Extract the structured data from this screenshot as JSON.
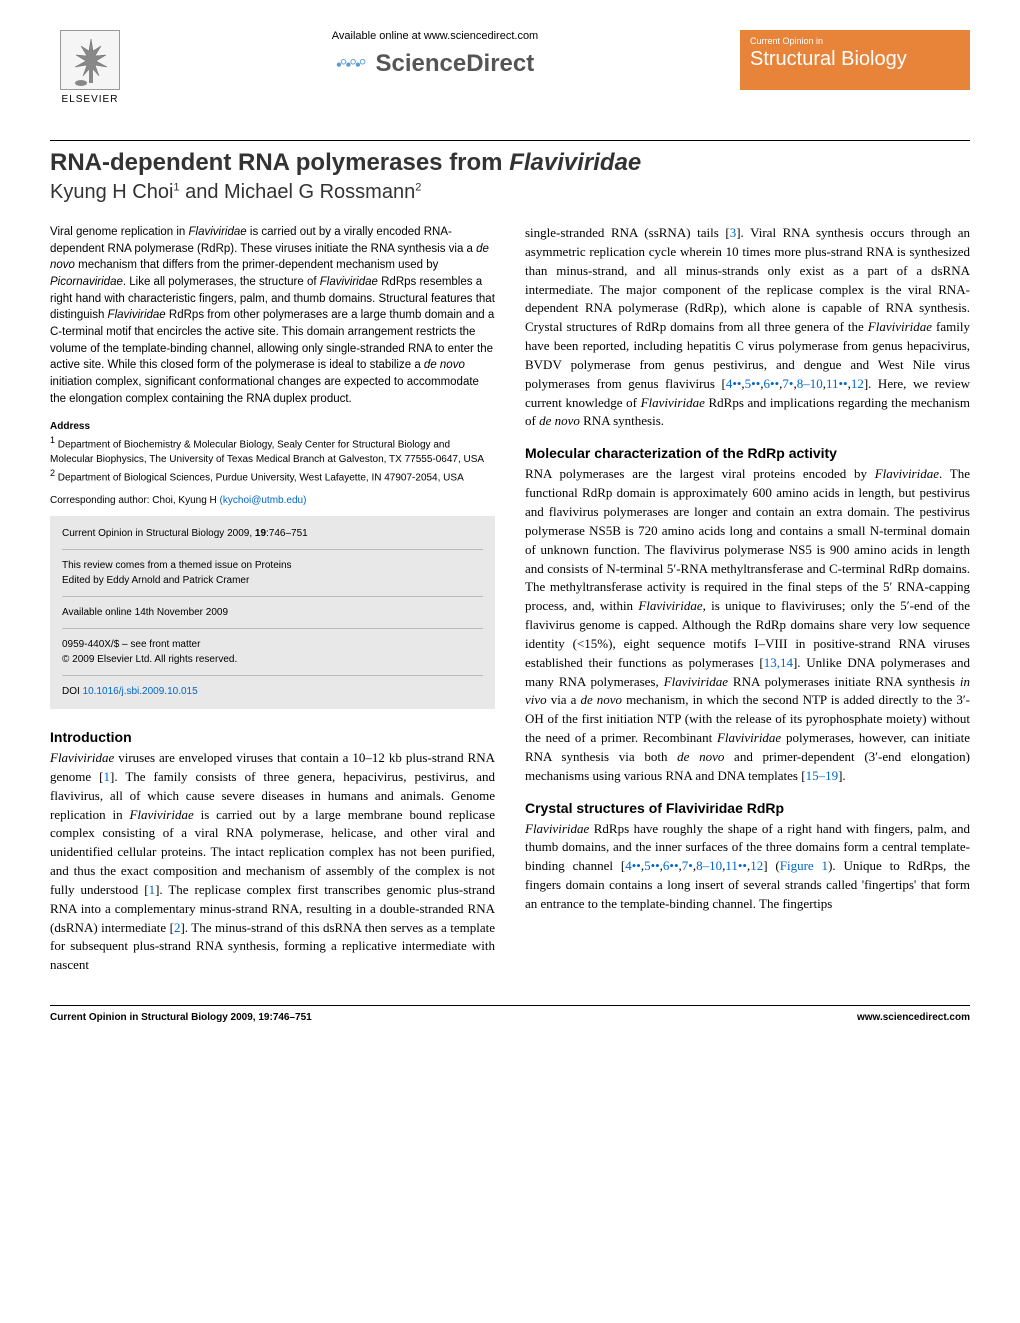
{
  "header": {
    "available_online": "Available online at www.sciencedirect.com",
    "sciencedirect": "ScienceDirect",
    "elsevier_label": "ELSEVIER",
    "badge_small": "Current Opinion in",
    "badge_large": "Structural Biology"
  },
  "article": {
    "title_pre": "RNA-dependent RNA polymerases from ",
    "title_italic": "Flaviviridae",
    "authors_html": "Kyung H Choi<sup>1</sup> and Michael G Rossmann<sup>2</sup>"
  },
  "abstract": {
    "text": "Viral genome replication in <span class=\"italic\">Flaviviridae</span> is carried out by a virally encoded RNA-dependent RNA polymerase (RdRp). These viruses initiate the RNA synthesis via a <span class=\"italic\">de novo</span> mechanism that differs from the primer-dependent mechanism used by <span class=\"italic\">Picornaviridae</span>. Like all polymerases, the structure of <span class=\"italic\">Flaviviridae</span> RdRps resembles a right hand with characteristic fingers, palm, and thumb domains. Structural features that distinguish <span class=\"italic\">Flaviviridae</span> RdRps from other polymerases are a large thumb domain and a C-terminal motif that encircles the active site. This domain arrangement restricts the volume of the template-binding channel, allowing only single-stranded RNA to enter the active site. While this closed form of the polymerase is ideal to stabilize a <span class=\"italic\">de novo</span> initiation complex, significant conformational changes are expected to accommodate the elongation complex containing the RNA duplex product."
  },
  "address": {
    "head": "Address",
    "body": "<sup>1</sup> Department of Biochemistry & Molecular Biology, Sealy Center for Structural Biology and Molecular Biophysics, The University of Texas Medical Branch at Galveston, TX 77555-0647, USA<br><sup>2</sup> Department of Biological Sciences, Purdue University, West Lafayette, IN 47907-2054, USA"
  },
  "corresponding": {
    "label": "Corresponding author: Choi, Kyung H ",
    "email": "(kychoi@utmb.edu)"
  },
  "infobox": {
    "citation": "Current Opinion in Structural Biology 2009, <b>19</b>:746–751",
    "themed": "This review comes from a themed issue on Proteins",
    "edited": "Edited by Eddy Arnold and Patrick Cramer",
    "online": "Available online 14th November 2009",
    "issn": "0959-440X/$ – see front matter",
    "copyright": "© 2009 Elsevier Ltd. All rights reserved.",
    "doi_label": "DOI ",
    "doi_link": "10.1016/j.sbi.2009.10.015"
  },
  "sections": {
    "intro_head": "Introduction",
    "intro_body": "<span class=\"italic\">Flaviviridae</span> viruses are enveloped viruses that contain a 10–12 kb plus-strand RNA genome [<a>1</a>]. The family consists of three genera, hepacivirus, pestivirus, and flavivirus, all of which cause severe diseases in humans and animals. Genome replication in <span class=\"italic\">Flaviviridae</span> is carried out by a large membrane bound replicase complex consisting of a viral RNA polymerase, helicase, and other viral and unidentified cellular proteins. The intact replication complex has not been purified, and thus the exact composition and mechanism of assembly of the complex is not fully understood [<a>1</a>]. The replicase complex first transcribes genomic plus-strand RNA into a complementary minus-strand RNA, resulting in a double-stranded RNA (dsRNA) intermediate [<a>2</a>]. The minus-strand of this dsRNA then serves as a template for subsequent plus-strand RNA synthesis, forming a replicative intermediate with nascent",
    "col2_continue": "single-stranded RNA (ssRNA) tails [<a>3</a>]. Viral RNA synthesis occurs through an asymmetric replication cycle wherein 10 times more plus-strand RNA is synthesized than minus-strand, and all minus-strands only exist as a part of a dsRNA intermediate. The major component of the replicase complex is the viral RNA-dependent RNA polymerase (RdRp), which alone is capable of RNA synthesis. Crystal structures of RdRp domains from all three genera of the <span class=\"italic\">Flaviviridae</span> family have been reported, including hepatitis C virus polymerase from genus hepacivirus, BVDV polymerase from genus pestivirus, and dengue and West Nile virus polymerases from genus flavivirus [<a>4••</a>,<a>5••</a>,<a>6••</a>,<a>7•</a>,<a>8–10</a>,<a>11••</a>,<a>12</a>]. Here, we review current knowledge of <span class=\"italic\">Flaviviridae</span> RdRps and implications regarding the mechanism of <span class=\"italic\">de novo</span> RNA synthesis.",
    "molec_head": "Molecular characterization of the RdRp activity",
    "molec_body": "RNA polymerases are the largest viral proteins encoded by <span class=\"italic\">Flaviviridae</span>. The functional RdRp domain is approximately 600 amino acids in length, but pestivirus and flavivirus polymerases are longer and contain an extra domain. The pestivirus polymerase NS5B is 720 amino acids long and contains a small N-terminal domain of unknown function. The flavivirus polymerase NS5 is 900 amino acids in length and consists of N-terminal 5′-RNA methyltransferase and C-terminal RdRp domains. The methyltransferase activity is required in the final steps of the 5′ RNA-capping process, and, within <span class=\"italic\">Flaviviridae</span>, is unique to flaviviruses; only the 5′-end of the flavivirus genome is capped. Although the RdRp domains share very low sequence identity (<15%), eight sequence motifs I–VIII in positive-strand RNA viruses established their functions as polymerases [<a>13,14</a>]. Unlike DNA polymerases and many RNA polymerases, <span class=\"italic\">Flaviviridae</span> RNA polymerases initiate RNA synthesis <span class=\"italic\">in vivo</span> via a <span class=\"italic\">de novo</span> mechanism, in which the second NTP is added directly to the 3′-OH of the first initiation NTP (with the release of its pyrophosphate moiety) without the need of a primer. Recombinant <span class=\"italic\">Flaviviridae</span> polymerases, however, can initiate RNA synthesis via both <span class=\"italic\">de novo</span> and primer-dependent (3′-end elongation) mechanisms using various RNA and DNA templates [<a>15–19</a>].",
    "crystal_head": "Crystal structures of <span class=\"italic\">Flaviviridae</span> RdRp",
    "crystal_body": "<span class=\"italic\">Flaviviridae</span> RdRps have roughly the shape of a right hand with fingers, palm, and thumb domains, and the inner surfaces of the three domains form a central template-binding channel [<a>4••</a>,<a>5••</a>,<a>6••</a>,<a>7•</a>,<a>8–10</a>,<a>11••</a>,<a>12</a>] (<a>Figure 1</a>). Unique to RdRps, the fingers domain contains a long insert of several strands called 'fingertips' that form an entrance to the template-binding channel. The fingertips"
  },
  "footer": {
    "left": "Current Opinion in Structural Biology 2009, 19:746–751",
    "right": "www.sciencedirect.com"
  },
  "colors": {
    "badge_bg": "#e8833a",
    "badge_fg": "#ffffff",
    "link": "#0066cc",
    "infobox_bg": "#e8e8e8"
  }
}
